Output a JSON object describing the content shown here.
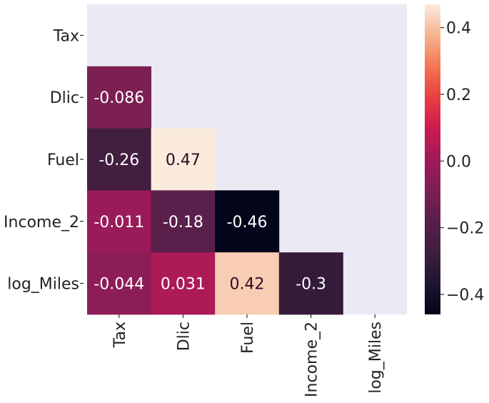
{
  "chart_data": {
    "type": "heatmap",
    "title": "",
    "xlabel": "",
    "ylabel": "",
    "rows": [
      "Tax",
      "Dlic",
      "Fuel",
      "Income_2",
      "log_Miles"
    ],
    "columns": [
      "Tax",
      "Dlic",
      "Fuel",
      "Income_2",
      "log_Miles"
    ],
    "mask": "upper-triangle-including-diagonal",
    "cells": [
      {
        "row": 1,
        "col": 0,
        "value": -0.086,
        "label": "-0.086"
      },
      {
        "row": 2,
        "col": 0,
        "value": -0.26,
        "label": "-0.26"
      },
      {
        "row": 2,
        "col": 1,
        "value": 0.47,
        "label": "0.47"
      },
      {
        "row": 3,
        "col": 0,
        "value": -0.011,
        "label": "-0.011"
      },
      {
        "row": 3,
        "col": 1,
        "value": -0.18,
        "label": "-0.18"
      },
      {
        "row": 3,
        "col": 2,
        "value": -0.46,
        "label": "-0.46"
      },
      {
        "row": 4,
        "col": 0,
        "value": -0.044,
        "label": "-0.044"
      },
      {
        "row": 4,
        "col": 1,
        "value": 0.031,
        "label": "0.031"
      },
      {
        "row": 4,
        "col": 2,
        "value": 0.42,
        "label": "0.42"
      },
      {
        "row": 4,
        "col": 3,
        "value": -0.3,
        "label": "-0.3"
      }
    ],
    "colorbar": {
      "vmin": -0.46,
      "vmax": 0.47,
      "ticks": [
        0.4,
        0.2,
        0.0,
        -0.2,
        -0.4
      ],
      "tick_labels": [
        "0.4",
        "0.2",
        "0.0",
        "−0.2",
        "−0.4"
      ],
      "colormap": "rocket"
    },
    "colors": {
      "mask_background": "#eae9f4",
      "text_light": "#ffffff",
      "text_dark": "#2b0d20"
    }
  }
}
